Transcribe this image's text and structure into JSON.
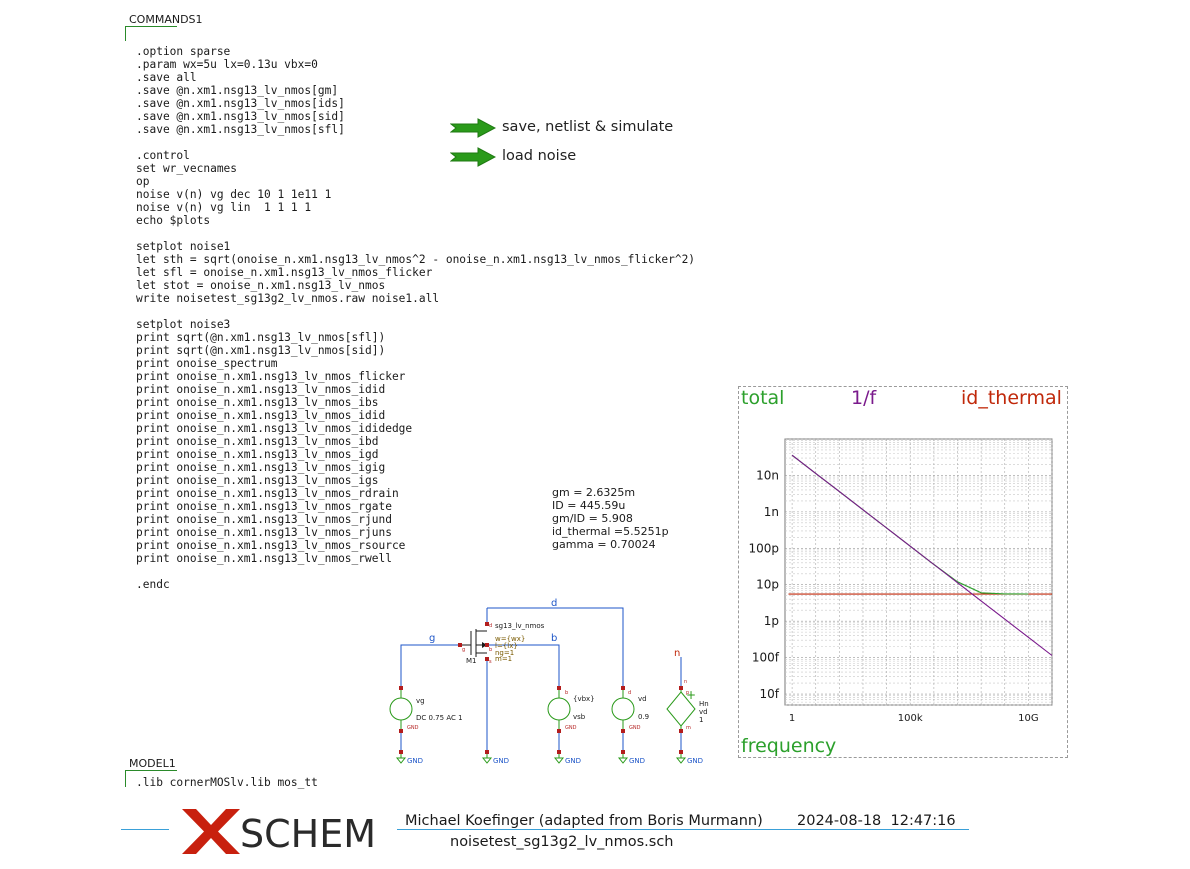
{
  "commands_block": {
    "title": "COMMANDS1",
    "lines": [
      ".option sparse",
      ".param wx=5u lx=0.13u vbx=0",
      ".save all",
      ".save @n.xm1.nsg13_lv_nmos[gm]",
      ".save @n.xm1.nsg13_lv_nmos[ids]",
      ".save @n.xm1.nsg13_lv_nmos[sid]",
      ".save @n.xm1.nsg13_lv_nmos[sfl]",
      "",
      ".control",
      "set wr_vecnames",
      "op",
      "noise v(n) vg dec 10 1 1e11 1",
      "noise v(n) vg lin  1 1 1 1",
      "echo $plots",
      "",
      "setplot noise1",
      "let sth = sqrt(onoise_n.xm1.nsg13_lv_nmos^2 - onoise_n.xm1.nsg13_lv_nmos_flicker^2)",
      "let sfl = onoise_n.xm1.nsg13_lv_nmos_flicker",
      "let stot = onoise_n.xm1.nsg13_lv_nmos",
      "write noisetest_sg13g2_lv_nmos.raw noise1.all",
      "",
      "setplot noise3",
      "print sqrt(@n.xm1.nsg13_lv_nmos[sfl])",
      "print sqrt(@n.xm1.nsg13_lv_nmos[sid])",
      "print onoise_spectrum",
      "print onoise_n.xm1.nsg13_lv_nmos_flicker",
      "print onoise_n.xm1.nsg13_lv_nmos_idid",
      "print onoise_n.xm1.nsg13_lv_nmos_ibs",
      "print onoise_n.xm1.nsg13_lv_nmos_idid",
      "print onoise_n.xm1.nsg13_lv_nmos_ididedge",
      "print onoise_n.xm1.nsg13_lv_nmos_ibd",
      "print onoise_n.xm1.nsg13_lv_nmos_igd",
      "print onoise_n.xm1.nsg13_lv_nmos_igig",
      "print onoise_n.xm1.nsg13_lv_nmos_igs",
      "print onoise_n.xm1.nsg13_lv_nmos_rdrain",
      "print onoise_n.xm1.nsg13_lv_nmos_rgate",
      "print onoise_n.xm1.nsg13_lv_nmos_rjund",
      "print onoise_n.xm1.nsg13_lv_nmos_rjuns",
      "print onoise_n.xm1.nsg13_lv_nmos_rsource",
      "print onoise_n.xm1.nsg13_lv_nmos_rwell",
      "",
      ".endc"
    ]
  },
  "model_block": {
    "title": "MODEL1",
    "line": ".lib cornerMOSlv.lib mos_tt"
  },
  "launchers": [
    {
      "label": "save, netlist & simulate",
      "icon": "green-arrow-icon"
    },
    {
      "label": "load noise",
      "icon": "green-arrow-icon"
    }
  ],
  "op_results": [
    "gm = 2.6325m",
    "ID = 445.59u",
    "gm/ID = 5.908",
    "id_thermal =5.5251p",
    "gamma = 0.70024"
  ],
  "plot": {
    "legend": [
      {
        "label": "total",
        "color": "#2ca02c"
      },
      {
        "label": "1/f",
        "color": "#7a1a8c"
      },
      {
        "label": "id_thermal",
        "color": "#c0280a"
      }
    ],
    "xlabel": "frequency",
    "x_ticks": [
      "1",
      "100k",
      "10G"
    ],
    "y_ticks": [
      "10n",
      "1n",
      "100p",
      "10p",
      "1p",
      "100f",
      "10f"
    ]
  },
  "chart_data": {
    "type": "line",
    "xlabel": "frequency",
    "x_scale": "log",
    "y_scale": "log",
    "xlim": [
      0.5,
      100000000000.0
    ],
    "ylim": [
      5e-15,
      1e-07
    ],
    "x_tick_values": [
      1,
      100000.0,
      10000000000.0
    ],
    "x_tick_labels": [
      "1",
      "100k",
      "10G"
    ],
    "y_tick_values": [
      1e-08,
      1e-09,
      1e-10,
      1e-11,
      1e-12,
      1e-13,
      1e-14
    ],
    "y_tick_labels": [
      "10n",
      "1n",
      "100p",
      "10p",
      "1p",
      "100f",
      "10f"
    ],
    "grid": true,
    "legend_position": "top",
    "series": [
      {
        "name": "total",
        "color": "#2ca02c",
        "x": [
          1,
          10,
          100.0,
          1000.0,
          10000.0,
          100000.0,
          1000000.0,
          10000000.0,
          100000000.0,
          1000000000.0,
          10000000000.0
        ],
        "y": [
          3.6e-08,
          1.14e-08,
          3.6e-09,
          1.14e-09,
          3.6e-10,
          1.14e-10,
          3.6e-11,
          1.2e-11,
          6e-12,
          5.6e-12,
          5.55e-12
        ]
      },
      {
        "name": "1/f",
        "color": "#7a1a8c",
        "x": [
          1,
          10,
          100.0,
          1000.0,
          10000.0,
          100000.0,
          1000000.0,
          10000000.0,
          100000000.0,
          1000000000.0,
          10000000000.0,
          100000000000.0
        ],
        "y": [
          3.6e-08,
          1.14e-08,
          3.6e-09,
          1.14e-09,
          3.6e-10,
          1.14e-10,
          3.6e-11,
          1.14e-11,
          3.6e-12,
          1.14e-12,
          3.6e-13,
          1.14e-13
        ]
      },
      {
        "name": "id_thermal",
        "color": "#c0280a",
        "x": [
          0.7,
          100000000000.0
        ],
        "y": [
          5.5251e-12,
          5.5251e-12
        ]
      }
    ]
  },
  "schematic": {
    "nets": {
      "d": "d",
      "g": "g",
      "b": "b",
      "n": "n"
    },
    "mosfet": {
      "name": "M1",
      "model": "sg13_lv_nmos",
      "w": "w={wx}",
      "l": "l={lx}",
      "ng": "ng=1",
      "m": "m=1"
    },
    "sources": [
      {
        "name": "vg",
        "value": "DC 0.75 AC 1"
      },
      {
        "name": "vsb",
        "value": "{vbx}"
      },
      {
        "name": "vd",
        "value": "0.9"
      },
      {
        "name": "Hn",
        "ctrl": "vd",
        "gain": "1"
      }
    ],
    "gnd_label": "GND",
    "pin_labels": {
      "g": "g",
      "d": "d",
      "s": "s",
      "b": "b",
      "p": "p",
      "m": "m",
      "n": "n"
    }
  },
  "title_bar": {
    "logo": "SCHEM",
    "author": "Michael Koefinger (adapted from Boris Murmann)",
    "date": "2024-08-18",
    "time": "12:47:16",
    "file": "noisetest_sg13g2_lv_nmos.sch"
  }
}
